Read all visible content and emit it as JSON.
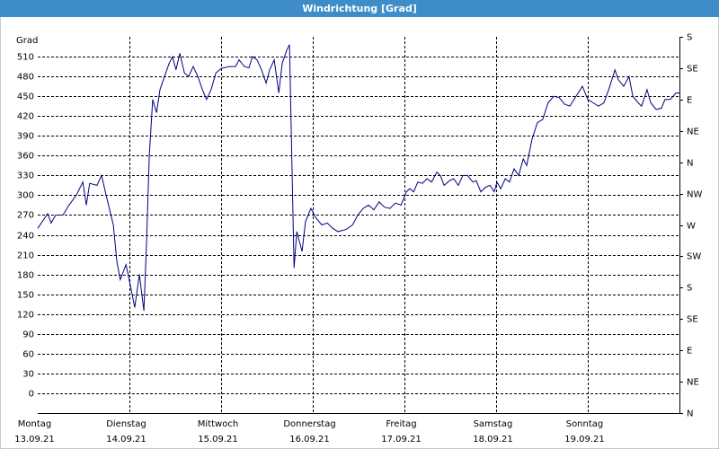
{
  "chart_data": {
    "type": "line",
    "title": "Windrichtung [Grad]",
    "y_label": "Grad",
    "xlim": [
      0,
      168
    ],
    "xticks": [
      {
        "value": 0,
        "label": [
          "Montag",
          "13.09.21"
        ]
      },
      {
        "value": 24,
        "label": [
          "Dienstag",
          "14.09.21"
        ]
      },
      {
        "value": 48,
        "label": [
          "Mittwoch",
          "15.09.21"
        ]
      },
      {
        "value": 72,
        "label": [
          "Donnerstag",
          "16.09.21"
        ]
      },
      {
        "value": 96,
        "label": [
          "Freitag",
          "17.09.21"
        ]
      },
      {
        "value": 120,
        "label": [
          "Samstag",
          "18.09.21"
        ]
      },
      {
        "value": 144,
        "label": [
          "Sonntag",
          "19.09.21"
        ]
      }
    ],
    "ylim": [
      -30,
      540
    ],
    "yticks": [
      0,
      30,
      60,
      90,
      120,
      150,
      180,
      210,
      240,
      270,
      300,
      330,
      360,
      390,
      420,
      450,
      480,
      510
    ],
    "y2lim": [
      0,
      540
    ],
    "y2ticks": [
      {
        "value": 0,
        "label": "N"
      },
      {
        "value": 45,
        "label": "NE"
      },
      {
        "value": 90,
        "label": "E"
      },
      {
        "value": 135,
        "label": "SE"
      },
      {
        "value": 180,
        "label": "S"
      },
      {
        "value": 225,
        "label": "SW"
      },
      {
        "value": 270,
        "label": "W"
      },
      {
        "value": 315,
        "label": "NW"
      },
      {
        "value": 360,
        "label": "N"
      },
      {
        "value": 405,
        "label": "NE"
      },
      {
        "value": 450,
        "label": "E"
      },
      {
        "value": 495,
        "label": "SE"
      },
      {
        "value": 540,
        "label": "S"
      }
    ],
    "grid": true,
    "x": [
      0.0,
      1.4,
      2.6,
      3.5,
      4.7,
      6.6,
      8.2,
      10.1,
      11.8,
      12.7,
      13.6,
      15.5,
      16.7,
      17.9,
      19.8,
      20.7,
      21.6,
      23.1,
      24.2,
      25.4,
      26.6,
      27.8,
      28.5,
      29.2,
      30.1,
      31.1,
      32.0,
      33.2,
      34.4,
      35.3,
      36.2,
      37.2,
      38.4,
      39.5,
      40.7,
      41.9,
      43.1,
      44.2,
      45.4,
      46.6,
      48.0,
      50.1,
      51.8,
      52.7,
      54.1,
      55.3,
      56.2,
      57.4,
      58.6,
      59.8,
      60.7,
      61.9,
      63.1,
      64.0,
      65.2,
      65.9,
      67.1,
      67.8,
      68.5,
      69.2,
      70.1,
      71.5,
      72.9,
      74.4,
      75.8,
      77.2,
      78.6,
      80.7,
      82.4,
      83.8,
      85.2,
      86.6,
      88.0,
      89.4,
      90.8,
      92.2,
      93.6,
      95.1,
      96.5,
      97.4,
      98.4,
      99.5,
      100.7,
      101.9,
      103.1,
      104.5,
      105.4,
      106.4,
      107.8,
      108.9,
      110.1,
      111.3,
      112.5,
      113.9,
      114.8,
      116.0,
      117.2,
      118.4,
      119.5,
      120.2,
      121.2,
      122.4,
      123.5,
      124.7,
      125.9,
      127.1,
      128.0,
      129.4,
      130.8,
      132.2,
      133.6,
      135.1,
      136.5,
      137.9,
      139.3,
      140.7,
      142.6,
      144.0,
      145.4,
      146.8,
      148.2,
      149.6,
      151.1,
      152.0,
      153.4,
      154.8,
      155.8,
      157.2,
      158.1,
      159.5,
      160.5,
      161.9,
      163.3,
      164.2,
      165.6,
      167.1,
      168.0
    ],
    "series": [
      {
        "name": "Windrichtung",
        "color": "#000080",
        "values": [
          250,
          262,
          272,
          258,
          270,
          270,
          285,
          300,
          320,
          285,
          318,
          315,
          330,
          300,
          255,
          200,
          172,
          195,
          165,
          130,
          180,
          125,
          230,
          360,
          445,
          425,
          460,
          480,
          500,
          510,
          490,
          515,
          485,
          480,
          495,
          480,
          460,
          445,
          460,
          485,
          492,
          495,
          495,
          505,
          495,
          493,
          510,
          505,
          490,
          470,
          490,
          505,
          455,
          500,
          520,
          528,
          190,
          245,
          230,
          215,
          260,
          280,
          265,
          255,
          258,
          250,
          245,
          248,
          255,
          270,
          280,
          285,
          278,
          290,
          282,
          280,
          288,
          285,
          305,
          310,
          305,
          320,
          318,
          325,
          320,
          335,
          330,
          315,
          322,
          325,
          315,
          330,
          330,
          320,
          322,
          305,
          312,
          315,
          305,
          320,
          310,
          325,
          320,
          340,
          330,
          355,
          345,
          385,
          410,
          415,
          440,
          450,
          448,
          438,
          435,
          448,
          465,
          445,
          440,
          435,
          440,
          462,
          490,
          475,
          465,
          480,
          450,
          440,
          435,
          460,
          440,
          430,
          432,
          445,
          445,
          455,
          455
        ]
      }
    ]
  }
}
